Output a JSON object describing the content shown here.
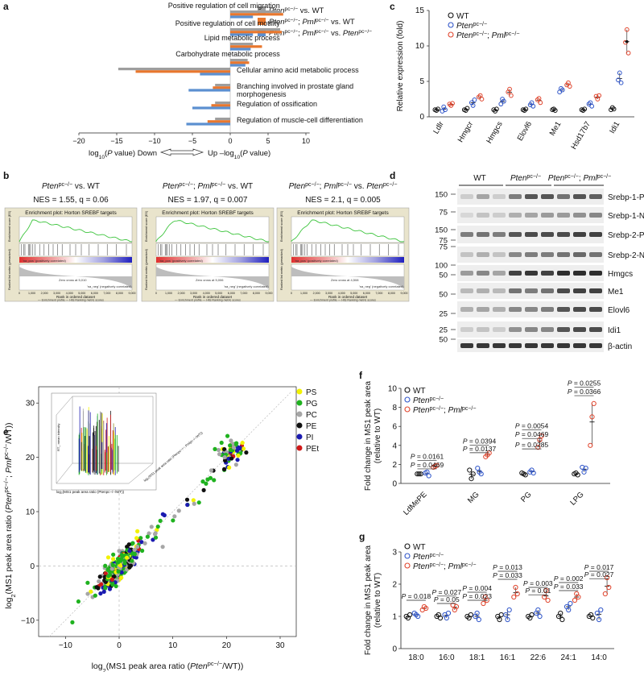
{
  "colors": {
    "grey": "#9e9e9e",
    "orange": "#e8772e",
    "blue": "#5b8fd0",
    "gsea_bg": "#e9e4cc",
    "gsea_line": "#3cc43c",
    "ko": "#2f55c9",
    "dko": "#e0442c",
    "PS": "#f2f200",
    "PG": "#1fb21f",
    "PC": "#a6a6a6",
    "PE": "#111111",
    "PI": "#1a1ab0",
    "PEt": "#d01818"
  },
  "panel_labels": {
    "a": "a",
    "b": "b",
    "c": "c",
    "d": "d",
    "e": "e",
    "f": "f",
    "g": "g"
  },
  "panel_a": {
    "legend": [
      "Pten",
      "pc−/−",
      " vs. WT",
      "Pten",
      "pc−/−",
      "; Pml",
      "pc−/−",
      " vs. WT",
      "Pten",
      "pc−/−",
      "; Pml",
      "pc−/−",
      " vs. Pten",
      "pc−/−"
    ],
    "up_terms": [
      {
        "label": "Positive regulation of cell migration",
        "values": [
          6.8,
          7.0,
          3.0
        ]
      },
      {
        "label": "Positive regulation of cell motility",
        "values": [
          6.6,
          6.8,
          3.0
        ]
      },
      {
        "label": "Lipid metabolic process",
        "values": [
          3.0,
          4.2,
          2.7
        ]
      },
      {
        "label": "Carbohydrate metabolic process",
        "values": [
          2.3,
          2.5,
          2.0
        ]
      }
    ],
    "down_terms": [
      {
        "label": "Cellular amino acid metabolic process",
        "values": [
          -14.8,
          -12.5,
          -4.0
        ]
      },
      {
        "label": "Branching involved in prostate gland",
        "label2": "morphogenesis",
        "values": [
          -2.0,
          -2.3,
          -5.5
        ]
      },
      {
        "label": "Regulation of ossification",
        "values": [
          -2.0,
          -2.5,
          -5.0
        ]
      },
      {
        "label": "Regulation of muscle-cell differentiation",
        "values": [
          -2.0,
          -3.0,
          -5.8
        ]
      }
    ],
    "axis_ticks": [
      "−20",
      "−15",
      "−10",
      "−5",
      "0",
      "5",
      "10"
    ],
    "xlabel_left": "log",
    "xlabel_sub": "10",
    "xlabel_left2": "(P value) Down",
    "xlabel_right": "Up –log",
    "xlabel_right2": "(P value)"
  },
  "panel_b": {
    "plots": [
      {
        "title_parts": [
          "Pten",
          "pc−/−",
          " vs. WT"
        ],
        "nes": "NES = 1.55, q = 0.06",
        "zero": "Zero cross at 5,010"
      },
      {
        "title_parts": [
          "Pten",
          "pc−/−",
          "; Pml",
          "pc−/−",
          " vs. WT"
        ],
        "nes": "NES = 1.97, q = 0.007",
        "zero": "Zero cross at 5,006"
      },
      {
        "title_parts": [
          "Pten",
          "pc−/−",
          "; Pml",
          "pc−/−",
          " vs. Pten",
          "pc−/−"
        ],
        "nes": "NES = 2.1, q = 0.005",
        "zero": "Zero cross at 4,508"
      }
    ],
    "header": "Enrichment plot: Horton SREBF targets",
    "ylab_top": "Enrichment score (ES)",
    "ylab_bot": "Ranked list metric (preranked)",
    "pos_label": "'na_pos' (positively correlated)",
    "neg_label": "'na_neg' (negatively correlated)",
    "xlab": "Rank in ordered dataset",
    "legend": "— Enrichment profile  — Hits    Ranking metric scores",
    "xticks": [
      "0",
      "1,000",
      "2,000",
      "3,000",
      "4,000",
      "5,000",
      "6,000",
      "7,000",
      "8,000",
      "9,000"
    ]
  },
  "panel_c": {
    "legend": [
      "WT",
      "Pten",
      "pc−/−",
      "Pten",
      "pc−/−",
      "; Pml",
      "pc−/−"
    ],
    "ylabel": "Relative expression (fold)",
    "yticks": [
      "0",
      "5",
      "10",
      "15"
    ],
    "genes": [
      "Ldlr",
      "Hmgcr",
      "Hmgcs",
      "Elovl6",
      "Me1",
      "Hsd17b7",
      "Idi1"
    ],
    "chart_data": {
      "type": "scatter",
      "categories": [
        "Ldlr",
        "Hmgcr",
        "Hmgcs",
        "Elovl6",
        "Me1",
        "Hsd17b7",
        "Idi1"
      ],
      "series": [
        {
          "name": "WT",
          "values": [
            [
              1.0,
              0.9,
              1.1
            ],
            [
              1.0,
              0.9,
              1.2
            ],
            [
              1.0,
              0.8,
              1.1
            ],
            [
              1.0,
              0.9,
              1.1
            ],
            [
              1.0,
              1.1,
              0.9
            ],
            [
              1.0,
              0.9,
              1.1
            ],
            [
              1.0,
              1.3,
              1.1
            ]
          ]
        },
        {
          "name": "Ptenpc−/−",
          "values": [
            [
              0.8,
              1.4,
              1.0
            ],
            [
              2.0,
              1.6,
              2.4
            ],
            [
              1.8,
              2.5,
              2.2
            ],
            [
              1.7,
              2.0,
              1.5
            ],
            [
              3.5,
              4.0,
              3.8
            ],
            [
              1.8,
              2.0,
              1.5
            ],
            [
              5.2,
              6.2,
              4.8
            ]
          ]
        },
        {
          "name": "Ptenpc−/−; Pmlpc−/−",
          "values": [
            [
              1.8,
              1.6,
              1.9
            ],
            [
              2.8,
              3.0,
              2.5
            ],
            [
              3.5,
              3.9,
              3.0
            ],
            [
              2.4,
              2.6,
              2.0
            ],
            [
              4.5,
              4.8,
              4.3
            ],
            [
              2.9,
              2.5,
              3.0
            ],
            [
              10.5,
              12.3,
              9.0
            ]
          ]
        }
      ],
      "ylim": [
        0,
        15
      ]
    }
  },
  "panel_d": {
    "groups": [
      [
        "WT"
      ],
      [
        "Pten",
        "pc−/−"
      ],
      [
        "Pten",
        "pc−/−",
        "; Pml",
        "pc−/−"
      ]
    ],
    "rows": [
      {
        "label": "Srebp-1-P",
        "mw": "150"
      },
      {
        "label": "Srebp-1-N",
        "mw": "75"
      },
      {
        "label": "Srebp-2-P",
        "mw": "150"
      },
      {
        "label": "Srebp-2-N",
        "mw": "75"
      },
      {
        "label": "Hmgcs",
        "mw": "50"
      },
      {
        "label": "Me1",
        "mw": "50"
      },
      {
        "label": "Elovl6",
        "mw": "25"
      },
      {
        "label": "Idi1",
        "mw": "25"
      },
      {
        "label": "β-actin",
        "mw": "50"
      }
    ],
    "extra_mw": [
      {
        "mw": "100"
      },
      {
        "mw": "75"
      }
    ],
    "intensities": [
      [
        0.15,
        0.35,
        0.15,
        0.55,
        0.75,
        0.75,
        0.6,
        0.75,
        0.7
      ],
      [
        0.1,
        0.2,
        0.15,
        0.3,
        0.35,
        0.4,
        0.4,
        0.45,
        0.5
      ],
      [
        0.55,
        0.6,
        0.55,
        0.75,
        0.8,
        0.8,
        0.8,
        0.85,
        0.85
      ],
      [
        0.2,
        0.3,
        0.2,
        0.5,
        0.55,
        0.55,
        0.6,
        0.65,
        0.6
      ],
      [
        0.4,
        0.5,
        0.35,
        0.85,
        0.9,
        0.85,
        0.95,
        0.95,
        0.95
      ],
      [
        0.25,
        0.3,
        0.25,
        0.6,
        0.55,
        0.6,
        0.8,
        0.85,
        0.85
      ],
      [
        0.3,
        0.35,
        0.3,
        0.5,
        0.5,
        0.55,
        0.75,
        0.8,
        0.8
      ],
      [
        0.15,
        0.2,
        0.15,
        0.45,
        0.5,
        0.5,
        0.75,
        0.8,
        0.8
      ],
      [
        0.9,
        0.9,
        0.9,
        0.9,
        0.9,
        0.9,
        0.9,
        0.9,
        0.9
      ]
    ]
  },
  "panel_e": {
    "legend": [
      "PS",
      "PG",
      "PC",
      "PE",
      "PI",
      "PEt"
    ],
    "xlabel_parts": [
      "log",
      "2",
      "(MS1 peak area ratio (",
      "Pten",
      "pc−/−",
      "/WT))"
    ],
    "ylabel_parts": [
      "log",
      "2",
      "(MS1 peak area ratio (",
      "Pten",
      "pc−/−",
      "; Pml",
      "pc−/−",
      "/WT))"
    ],
    "xticks": [
      "−10",
      "0",
      "10",
      "20",
      "30"
    ],
    "yticks": [
      "−10",
      "0",
      "10",
      "20",
      "30"
    ],
    "inset_xlabel": "log₂(MS1 peak area ratio (Ptenpc−/−/WT))",
    "inset_ylabel": "log₂(MS1 peak area ratio (Ptenpc−/−; Pmlpc−/−/WT))",
    "inset_zlabel": "RT_ mean intensity",
    "chart_data": {
      "type": "scatter",
      "xlim": [
        -15,
        33
      ],
      "ylim": [
        -13,
        33
      ],
      "note_series": [
        "PS",
        "PG",
        "PC",
        "PE",
        "PI",
        "PEt"
      ],
      "centroids": [
        [
          0,
          0
        ],
        [
          22,
          21
        ]
      ]
    }
  },
  "panel_f": {
    "legend": [
      "WT",
      "Pten",
      "pc−/−",
      "Pten",
      "pc−/−",
      "; Pml",
      "pc−/−"
    ],
    "ylabel": "Fold change in MS1 peak area",
    "ylabel2": "(relative to WT)",
    "yticks": [
      "0",
      "2",
      "4",
      "6",
      "8",
      "10"
    ],
    "categories": [
      "LdMePE",
      "MG",
      "PG",
      "LPG"
    ],
    "pvalues": [
      {
        "text": "P = 0.0161",
        "cat": 0,
        "y": 2.6
      },
      {
        "text": "P = 0.0469",
        "cat": 0,
        "y": 1.7
      },
      {
        "text": "P = 0.0394",
        "cat": 1,
        "y": 4.2
      },
      {
        "text": "P = 0.0137",
        "cat": 1,
        "y": 3.4
      },
      {
        "text": "P = 0.0054",
        "cat": 2,
        "y": 5.8
      },
      {
        "text": "P = 0.0469",
        "cat": 2,
        "y": 4.9
      },
      {
        "text": "P = 0.0285",
        "cat": 2,
        "y": 3.8
      },
      {
        "text": "P = 0.0255",
        "cat": 3,
        "y": 10.3
      },
      {
        "text": "P = 0.0366",
        "cat": 3,
        "y": 9.4
      }
    ],
    "chart_data": {
      "type": "scatter",
      "categories": [
        "LdMePE",
        "MG",
        "PG",
        "LPG"
      ],
      "series": [
        {
          "name": "WT",
          "values": [
            [
              1.0,
              1.0,
              1.0
            ],
            [
              1.4,
              0.5,
              1.0
            ],
            [
              1.1,
              1.0,
              0.9
            ],
            [
              1.0,
              1.1,
              0.9
            ]
          ]
        },
        {
          "name": "Ptenpc−/−",
          "values": [
            [
              1.1,
              1.2,
              0.8
            ],
            [
              1.6,
              1.2,
              1.0
            ],
            [
              1.2,
              1.4,
              1.1
            ],
            [
              1.7,
              1.2,
              1.6
            ]
          ]
        },
        {
          "name": "Ptenpc−/−; Pmlpc−/−",
          "values": [
            [
              1.7,
              1.8,
              1.9
            ],
            [
              2.8,
              3.0,
              3.2
            ],
            [
              3.8,
              4.6,
              5.0
            ],
            [
              4.0,
              7.0,
              8.4
            ]
          ]
        }
      ],
      "ylim": [
        0,
        10
      ]
    }
  },
  "panel_g": {
    "legend": [
      "WT",
      "Pten",
      "pc−/−",
      "Pten",
      "pc−/−",
      "; Pml",
      "pc−/−"
    ],
    "ylabel": "Fold change in MS1 peak area",
    "ylabel2": "(relative to WT)",
    "yticks": [
      "0",
      "1",
      "2",
      "3"
    ],
    "categories": [
      "18:0",
      "16:0",
      "18:1",
      "16:1",
      "22:6",
      "24:1",
      "14:0"
    ],
    "pvalues": [
      {
        "text": "P = 0.018",
        "cat": 0,
        "y": 1.55
      },
      {
        "text": "P = 0.027",
        "cat": 1,
        "y": 1.68
      },
      {
        "text": "P = 0.05",
        "cat": 1,
        "y": 1.45
      },
      {
        "text": "P = 0.004",
        "cat": 2,
        "y": 1.8
      },
      {
        "text": "P = 0.023",
        "cat": 2,
        "y": 1.55
      },
      {
        "text": "P = 0.013",
        "cat": 3,
        "y": 2.45
      },
      {
        "text": "P = 0.033",
        "cat": 3,
        "y": 2.2
      },
      {
        "text": "P = 0.003",
        "cat": 4,
        "y": 1.95
      },
      {
        "text": "P = 0.01",
        "cat": 4,
        "y": 1.72
      },
      {
        "text": "P = 0.002",
        "cat": 5,
        "y": 2.1
      },
      {
        "text": "P = 0.033",
        "cat": 5,
        "y": 1.85
      },
      {
        "text": "P = 0.017",
        "cat": 6,
        "y": 2.45
      },
      {
        "text": "P = 0.027",
        "cat": 6,
        "y": 2.22
      }
    ],
    "chart_data": {
      "type": "scatter",
      "categories": [
        "18:0",
        "16:0",
        "18:1",
        "16:1",
        "22:6",
        "24:1",
        "14:0"
      ],
      "series": [
        {
          "name": "WT",
          "values": [
            [
              1.0,
              0.95,
              1.05
            ],
            [
              1.0,
              1.05,
              0.95
            ],
            [
              1.0,
              0.95,
              1.05
            ],
            [
              1.0,
              0.9,
              1.05
            ],
            [
              1.0,
              0.95,
              1.05
            ],
            [
              1.0,
              1.1,
              0.9
            ],
            [
              1.0,
              1.05,
              0.95
            ]
          ]
        },
        {
          "name": "Ptenpc−/−",
          "values": [
            [
              1.1,
              1.05,
              1.0
            ],
            [
              1.05,
              0.95,
              1.1
            ],
            [
              1.0,
              1.1,
              0.9
            ],
            [
              1.05,
              0.9,
              1.2
            ],
            [
              1.1,
              1.2,
              1.0
            ],
            [
              1.3,
              1.2,
              1.4
            ],
            [
              1.1,
              0.9,
              1.2
            ]
          ]
        },
        {
          "name": "Ptenpc−/−; Pmlpc−/−",
          "values": [
            [
              1.2,
              1.3,
              1.25
            ],
            [
              1.35,
              1.2,
              1.3
            ],
            [
              1.4,
              1.6,
              1.5
            ],
            [
              1.6,
              1.9,
              1.7
            ],
            [
              1.6,
              1.8,
              1.5
            ],
            [
              1.5,
              1.7,
              1.6
            ],
            [
              1.7,
              2.2,
              1.9
            ]
          ]
        }
      ],
      "ylim": [
        0,
        3
      ]
    }
  }
}
